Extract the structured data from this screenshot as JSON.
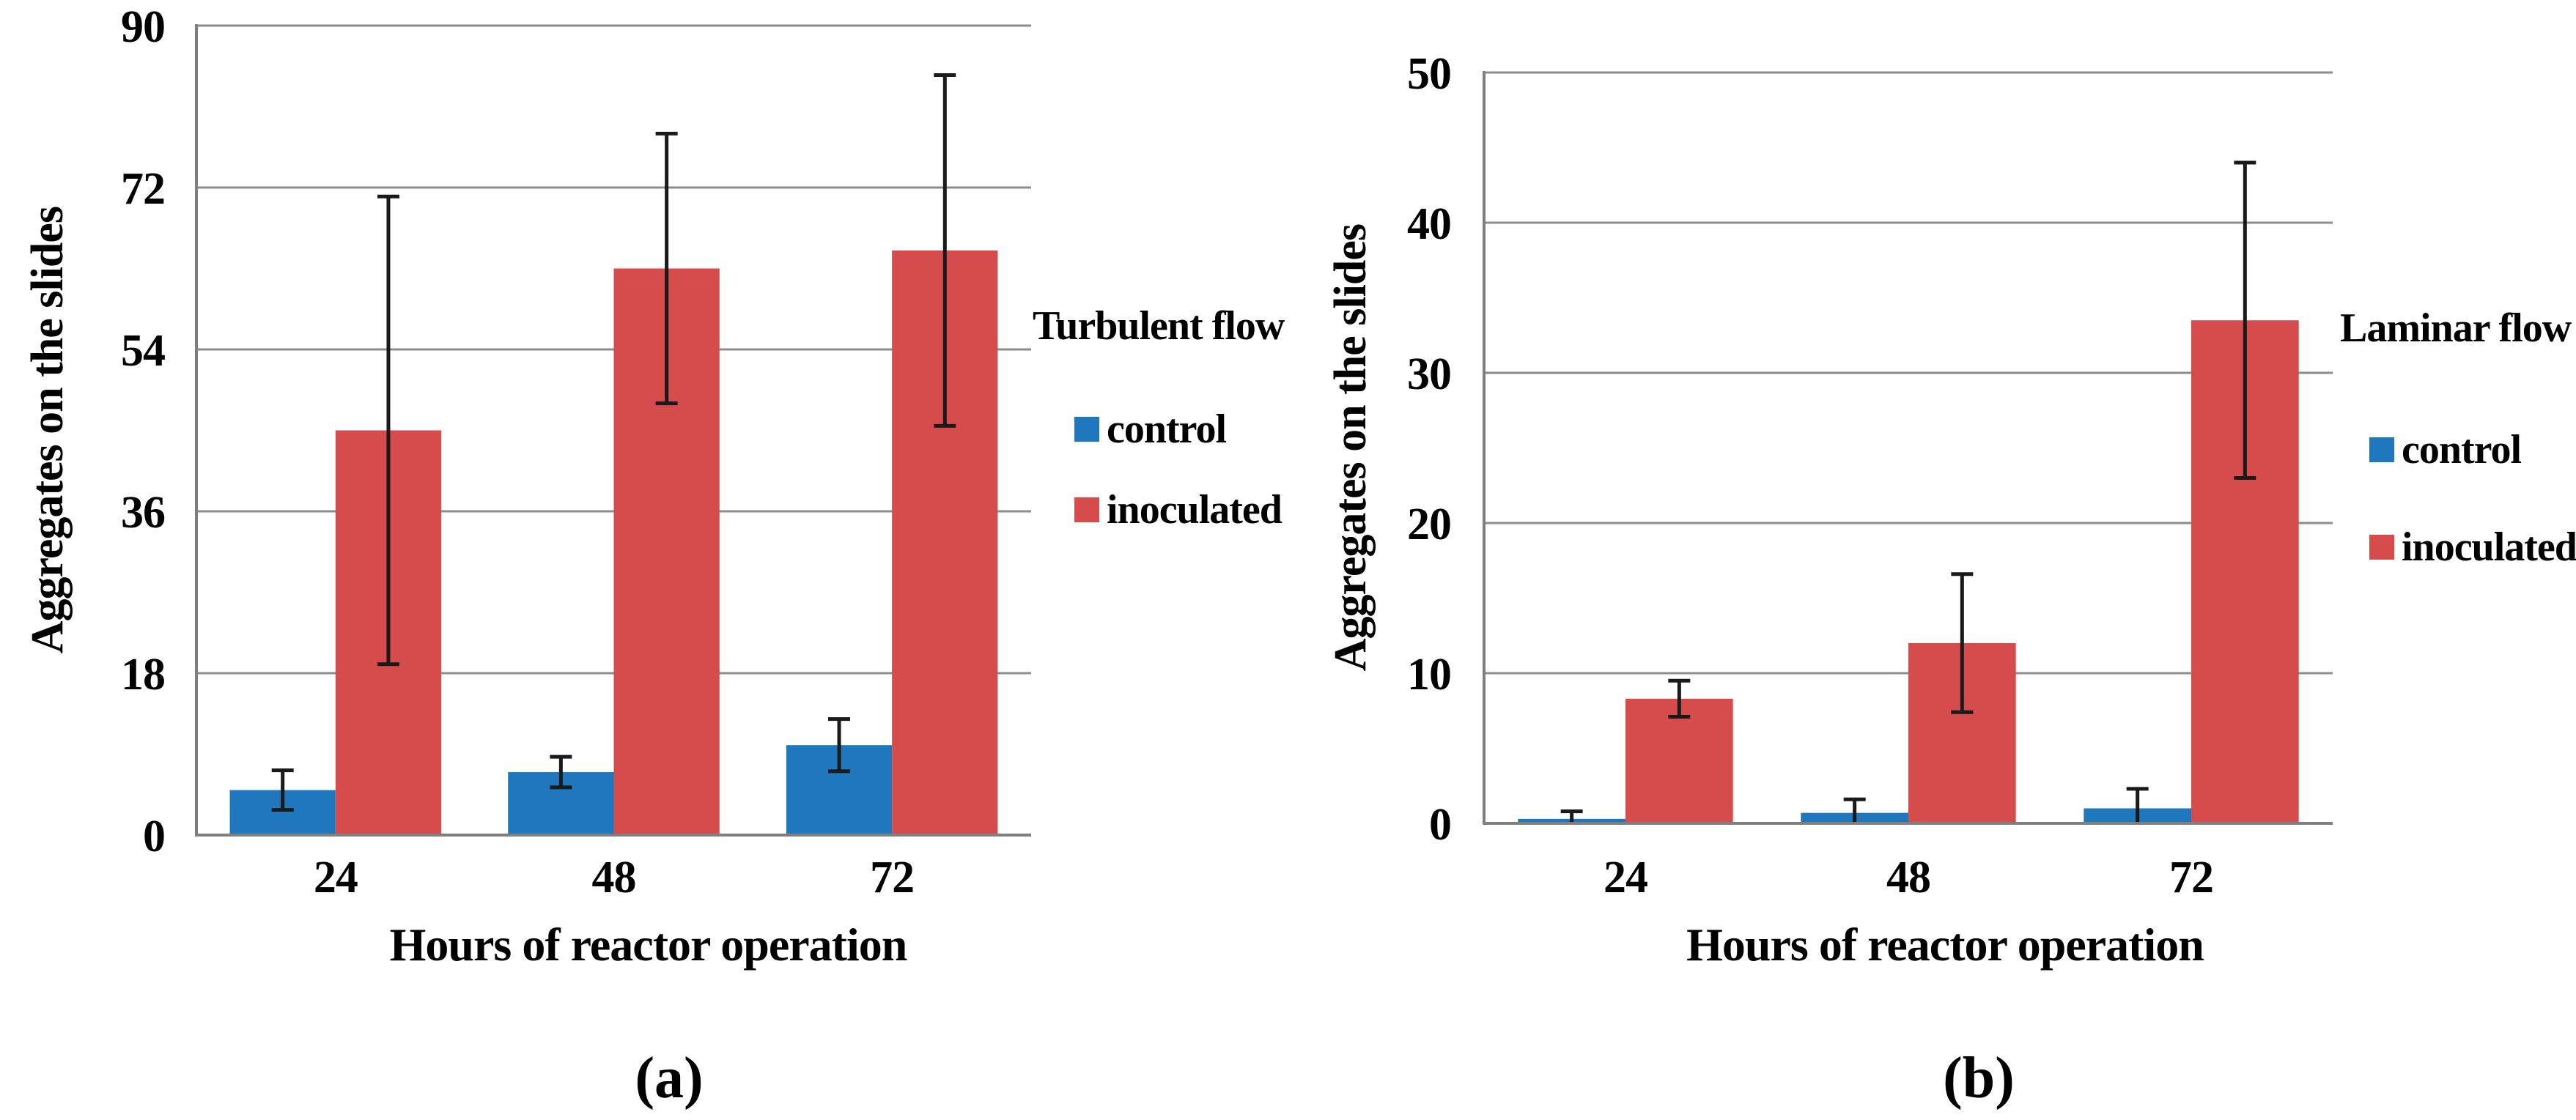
{
  "figure": {
    "background": "#FFFFFF"
  },
  "style": {
    "grid_color": "#8C8C8C",
    "axis_color": "#7F7F7F",
    "error_bar_color": "#1A1A1A",
    "control_color": "#1F78BE",
    "inoculated_color": "#D64C4C"
  },
  "chart_data": [
    {
      "id": "a",
      "type": "bar",
      "panel_caption": "(a)",
      "title": "Turbulent flow",
      "xlabel": "Hours of reactor operation",
      "ylabel": "Aggregates on the slides",
      "categories": [
        "24",
        "48",
        "72"
      ],
      "series": [
        {
          "name": "control",
          "color": "#1F78BE",
          "values": [
            5,
            7,
            10
          ],
          "errors": [
            2.2,
            1.7,
            2.9
          ]
        },
        {
          "name": "inoculated",
          "color": "#D64C4C",
          "values": [
            45,
            63,
            65
          ],
          "errors": [
            26,
            15,
            19.5
          ]
        }
      ],
      "ylim": [
        0,
        90
      ],
      "yticks": [
        0,
        18,
        36,
        54,
        72,
        90
      ],
      "grid": true,
      "legend_position": "right"
    },
    {
      "id": "b",
      "type": "bar",
      "panel_caption": "(b)",
      "title": "Laminar flow",
      "xlabel": "Hours of reactor operation",
      "ylabel": "Aggregates on the slides",
      "categories": [
        "24",
        "48",
        "72"
      ],
      "series": [
        {
          "name": "control",
          "color": "#1F78BE",
          "values": [
            0.3,
            0.7,
            1.0
          ],
          "errors": [
            0.5,
            0.9,
            1.3
          ]
        },
        {
          "name": "inoculated",
          "color": "#D64C4C",
          "values": [
            8.3,
            12,
            33.5
          ],
          "errors": [
            1.2,
            4.6,
            10.5
          ]
        }
      ],
      "ylim": [
        0,
        50
      ],
      "yticks": [
        0,
        10,
        20,
        30,
        40,
        50
      ],
      "grid": true,
      "legend_position": "right"
    }
  ]
}
